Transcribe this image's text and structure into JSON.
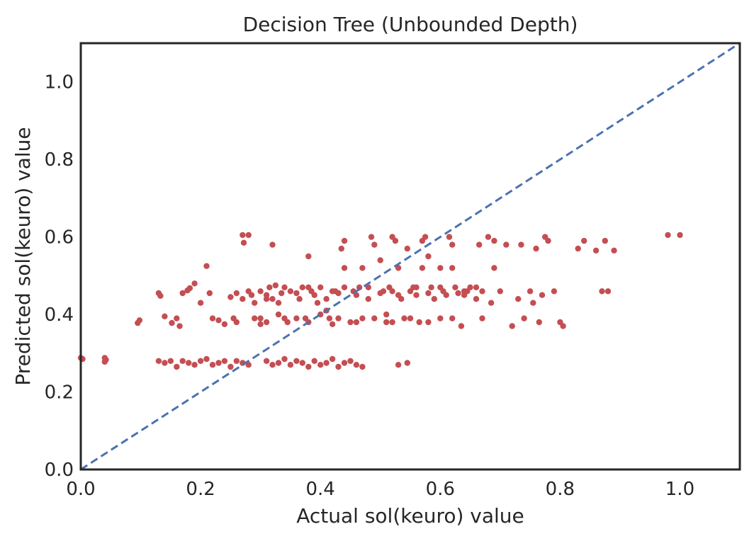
{
  "chart_data": {
    "type": "scatter",
    "title": "Decision Tree (Unbounded Depth)",
    "xlabel": "Actual sol(keuro) value",
    "ylabel": "Predicted sol(keuro) value",
    "xlim": [
      0,
      1.1
    ],
    "ylim": [
      0,
      1.1
    ],
    "xticks": [
      "0.0",
      "0.2",
      "0.4",
      "0.6",
      "0.8",
      "1.0"
    ],
    "yticks": [
      "0.0",
      "0.2",
      "0.4",
      "0.6",
      "0.8",
      "1.0"
    ],
    "grid": false,
    "colors": {
      "points": "#c44e52",
      "reference_line": "#4c72b0",
      "frame": "#262626"
    },
    "reference_line": {
      "style": "dashed",
      "from": [
        0,
        0
      ],
      "to": [
        1.1,
        1.1
      ]
    },
    "series": [
      {
        "points": [
          [
            0.0,
            0.288
          ],
          [
            0.003,
            0.285
          ],
          [
            0.04,
            0.288
          ],
          [
            0.04,
            0.278
          ],
          [
            0.042,
            0.283
          ],
          [
            0.095,
            0.378
          ],
          [
            0.098,
            0.385
          ],
          [
            0.13,
            0.455
          ],
          [
            0.133,
            0.448
          ],
          [
            0.14,
            0.395
          ],
          [
            0.152,
            0.378
          ],
          [
            0.16,
            0.39
          ],
          [
            0.165,
            0.37
          ],
          [
            0.17,
            0.455
          ],
          [
            0.178,
            0.462
          ],
          [
            0.182,
            0.468
          ],
          [
            0.19,
            0.48
          ],
          [
            0.21,
            0.525
          ],
          [
            0.215,
            0.455
          ],
          [
            0.2,
            0.43
          ],
          [
            0.22,
            0.39
          ],
          [
            0.23,
            0.385
          ],
          [
            0.24,
            0.375
          ],
          [
            0.255,
            0.39
          ],
          [
            0.26,
            0.38
          ],
          [
            0.25,
            0.445
          ],
          [
            0.26,
            0.455
          ],
          [
            0.27,
            0.44
          ],
          [
            0.28,
            0.46
          ],
          [
            0.285,
            0.45
          ],
          [
            0.27,
            0.605
          ],
          [
            0.28,
            0.605
          ],
          [
            0.272,
            0.585
          ],
          [
            0.29,
            0.43
          ],
          [
            0.29,
            0.39
          ],
          [
            0.3,
            0.375
          ],
          [
            0.3,
            0.46
          ],
          [
            0.31,
            0.45
          ],
          [
            0.315,
            0.47
          ],
          [
            0.32,
            0.44
          ],
          [
            0.325,
            0.475
          ],
          [
            0.33,
            0.43
          ],
          [
            0.335,
            0.455
          ],
          [
            0.32,
            0.58
          ],
          [
            0.34,
            0.39
          ],
          [
            0.345,
            0.38
          ],
          [
            0.35,
            0.46
          ],
          [
            0.36,
            0.455
          ],
          [
            0.365,
            0.44
          ],
          [
            0.37,
            0.47
          ],
          [
            0.375,
            0.39
          ],
          [
            0.38,
            0.38
          ],
          [
            0.385,
            0.46
          ],
          [
            0.39,
            0.45
          ],
          [
            0.395,
            0.43
          ],
          [
            0.4,
            0.47
          ],
          [
            0.41,
            0.44
          ],
          [
            0.415,
            0.39
          ],
          [
            0.42,
            0.375
          ],
          [
            0.425,
            0.46
          ],
          [
            0.43,
            0.455
          ],
          [
            0.435,
            0.57
          ],
          [
            0.44,
            0.59
          ],
          [
            0.45,
            0.38
          ],
          [
            0.455,
            0.46
          ],
          [
            0.46,
            0.45
          ],
          [
            0.465,
            0.47
          ],
          [
            0.47,
            0.39
          ],
          [
            0.48,
            0.44
          ],
          [
            0.485,
            0.6
          ],
          [
            0.49,
            0.58
          ],
          [
            0.5,
            0.455
          ],
          [
            0.505,
            0.46
          ],
          [
            0.51,
            0.38
          ],
          [
            0.515,
            0.47
          ],
          [
            0.52,
            0.6
          ],
          [
            0.525,
            0.59
          ],
          [
            0.53,
            0.45
          ],
          [
            0.535,
            0.44
          ],
          [
            0.54,
            0.39
          ],
          [
            0.545,
            0.57
          ],
          [
            0.55,
            0.46
          ],
          [
            0.555,
            0.47
          ],
          [
            0.56,
            0.45
          ],
          [
            0.565,
            0.38
          ],
          [
            0.57,
            0.59
          ],
          [
            0.575,
            0.6
          ],
          [
            0.58,
            0.455
          ],
          [
            0.585,
            0.47
          ],
          [
            0.59,
            0.44
          ],
          [
            0.6,
            0.39
          ],
          [
            0.605,
            0.46
          ],
          [
            0.61,
            0.45
          ],
          [
            0.615,
            0.6
          ],
          [
            0.62,
            0.58
          ],
          [
            0.625,
            0.47
          ],
          [
            0.63,
            0.455
          ],
          [
            0.635,
            0.37
          ],
          [
            0.64,
            0.45
          ],
          [
            0.645,
            0.46
          ],
          [
            0.65,
            0.47
          ],
          [
            0.66,
            0.44
          ],
          [
            0.665,
            0.58
          ],
          [
            0.67,
            0.39
          ],
          [
            0.68,
            0.6
          ],
          [
            0.685,
            0.43
          ],
          [
            0.69,
            0.59
          ],
          [
            0.7,
            0.46
          ],
          [
            0.71,
            0.58
          ],
          [
            0.72,
            0.37
          ],
          [
            0.73,
            0.44
          ],
          [
            0.735,
            0.58
          ],
          [
            0.74,
            0.39
          ],
          [
            0.75,
            0.46
          ],
          [
            0.755,
            0.43
          ],
          [
            0.76,
            0.57
          ],
          [
            0.765,
            0.38
          ],
          [
            0.77,
            0.45
          ],
          [
            0.775,
            0.6
          ],
          [
            0.78,
            0.59
          ],
          [
            0.79,
            0.46
          ],
          [
            0.8,
            0.38
          ],
          [
            0.805,
            0.37
          ],
          [
            0.83,
            0.57
          ],
          [
            0.84,
            0.59
          ],
          [
            0.86,
            0.565
          ],
          [
            0.87,
            0.46
          ],
          [
            0.875,
            0.59
          ],
          [
            0.88,
            0.46
          ],
          [
            0.89,
            0.565
          ],
          [
            0.98,
            0.605
          ],
          [
            1.0,
            0.605
          ],
          [
            0.13,
            0.28
          ],
          [
            0.14,
            0.275
          ],
          [
            0.15,
            0.28
          ],
          [
            0.16,
            0.265
          ],
          [
            0.17,
            0.28
          ],
          [
            0.18,
            0.275
          ],
          [
            0.19,
            0.27
          ],
          [
            0.2,
            0.28
          ],
          [
            0.21,
            0.285
          ],
          [
            0.22,
            0.27
          ],
          [
            0.23,
            0.275
          ],
          [
            0.24,
            0.28
          ],
          [
            0.25,
            0.265
          ],
          [
            0.26,
            0.28
          ],
          [
            0.27,
            0.275
          ],
          [
            0.28,
            0.27
          ],
          [
            0.31,
            0.28
          ],
          [
            0.32,
            0.27
          ],
          [
            0.33,
            0.275
          ],
          [
            0.34,
            0.285
          ],
          [
            0.35,
            0.27
          ],
          [
            0.36,
            0.28
          ],
          [
            0.37,
            0.275
          ],
          [
            0.38,
            0.265
          ],
          [
            0.39,
            0.28
          ],
          [
            0.4,
            0.27
          ],
          [
            0.41,
            0.275
          ],
          [
            0.42,
            0.285
          ],
          [
            0.43,
            0.265
          ],
          [
            0.44,
            0.275
          ],
          [
            0.45,
            0.28
          ],
          [
            0.46,
            0.27
          ],
          [
            0.47,
            0.265
          ],
          [
            0.53,
            0.27
          ],
          [
            0.545,
            0.275
          ],
          [
            0.3,
            0.39
          ],
          [
            0.31,
            0.38
          ],
          [
            0.33,
            0.4
          ],
          [
            0.36,
            0.39
          ],
          [
            0.4,
            0.4
          ],
          [
            0.43,
            0.39
          ],
          [
            0.46,
            0.38
          ],
          [
            0.49,
            0.39
          ],
          [
            0.52,
            0.38
          ],
          [
            0.55,
            0.39
          ],
          [
            0.58,
            0.38
          ],
          [
            0.62,
            0.39
          ],
          [
            0.34,
            0.47
          ],
          [
            0.38,
            0.47
          ],
          [
            0.42,
            0.46
          ],
          [
            0.44,
            0.47
          ],
          [
            0.48,
            0.47
          ],
          [
            0.52,
            0.46
          ],
          [
            0.56,
            0.47
          ],
          [
            0.6,
            0.47
          ],
          [
            0.64,
            0.46
          ],
          [
            0.66,
            0.47
          ],
          [
            0.67,
            0.46
          ],
          [
            0.44,
            0.52
          ],
          [
            0.47,
            0.52
          ],
          [
            0.53,
            0.52
          ],
          [
            0.57,
            0.52
          ],
          [
            0.6,
            0.52
          ],
          [
            0.62,
            0.52
          ],
          [
            0.38,
            0.55
          ],
          [
            0.58,
            0.55
          ],
          [
            0.5,
            0.54
          ],
          [
            0.51,
            0.4
          ],
          [
            0.31,
            0.44
          ],
          [
            0.41,
            0.41
          ],
          [
            0.69,
            0.52
          ]
        ]
      }
    ]
  }
}
